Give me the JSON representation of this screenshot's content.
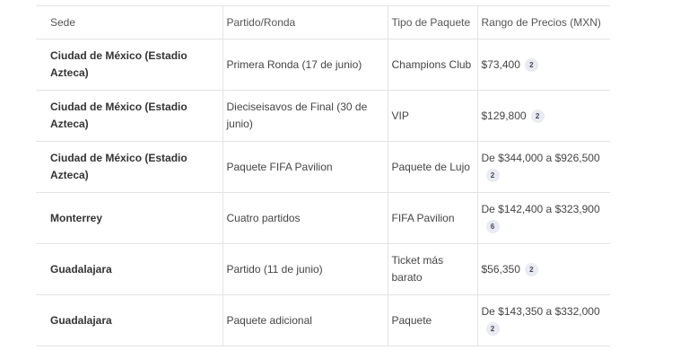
{
  "table": {
    "headers": [
      "Sede",
      "Partido/Ronda",
      "Tipo de Paquete",
      "Rango de Precios (MXN)"
    ],
    "rows": [
      {
        "sede": "Ciudad de México (Estadio Azteca)",
        "partido": "Primera Ronda (17 de junio)",
        "tipo": "Champions Club",
        "precio": "$73,400",
        "cite": "2"
      },
      {
        "sede": "Ciudad de México (Estadio Azteca)",
        "partido": "Dieciseisavos de Final (30 de junio)",
        "tipo": "VIP",
        "precio": "$129,800",
        "cite": "2"
      },
      {
        "sede": "Ciudad de México (Estadio Azteca)",
        "partido": "Paquete FIFA Pavilion",
        "tipo": "Paquete de Lujo",
        "precio": "De $344,000 a $926,500",
        "cite": "2"
      },
      {
        "sede": "Monterrey",
        "partido": "Cuatro partidos",
        "tipo": "FIFA Pavilion",
        "precio": "De $142,400 a $323,900",
        "cite": "6"
      },
      {
        "sede": "Guadalajara",
        "partido": "Partido (11 de junio)",
        "tipo": "Ticket más barato",
        "precio": "$56,350",
        "cite": "2"
      },
      {
        "sede": "Guadalajara",
        "partido": "Paquete adicional",
        "tipo": "Paquete",
        "precio": "De $143,350 a $332,000",
        "cite": "2"
      }
    ]
  }
}
